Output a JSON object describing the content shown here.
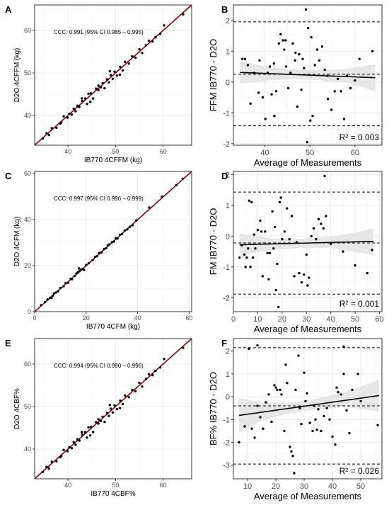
{
  "panels": [
    {
      "id": "A",
      "letter": "A",
      "kind": "scatter-identity",
      "xlabel": "IB770 4CFFM (kg)",
      "ylabel": "D2O 4CFFM (kg)",
      "annotation": "CCC: 0.991 (95% CI 0.985 – 0.995)",
      "xlim": [
        33,
        66
      ],
      "ylim": [
        33,
        66
      ],
      "xticks": [
        "40",
        "50",
        "60"
      ],
      "yticks": [
        "40",
        "50",
        "60"
      ],
      "xtick_values": [
        40,
        50,
        60
      ],
      "ytick_values": [
        40,
        50,
        60
      ],
      "points": {
        "x": [
          34.7,
          35.5,
          36.0,
          36.6,
          37.6,
          38.6,
          39.1,
          39.9,
          40.3,
          40.8,
          41.2,
          41.6,
          42.0,
          42.4,
          43.0,
          43.6,
          44.0,
          44.3,
          44.8,
          45.3,
          45.9,
          46.4,
          46.9,
          47.3,
          47.7,
          48.2,
          48.6,
          49.0,
          49.4,
          49.8,
          50.3,
          51.0,
          51.5,
          52.0,
          52.8,
          53.5,
          54.2,
          55.0,
          55.6,
          56.4,
          57.0,
          57.8,
          58.4,
          59.4,
          60.2,
          64.2,
          42.9,
          44.7,
          46.4,
          48.8,
          50.9,
          38.4
        ],
        "y": [
          34.6,
          35.8,
          35.4,
          37.0,
          37.1,
          38.4,
          39.8,
          39.5,
          40.4,
          40.2,
          41.6,
          41.0,
          42.3,
          42.0,
          43.4,
          44.0,
          42.7,
          45.1,
          45.2,
          44.0,
          46.3,
          46.0,
          46.6,
          47.6,
          46.4,
          48.5,
          47.8,
          49.5,
          48.6,
          50.3,
          49.4,
          51.4,
          50.6,
          52.6,
          52.2,
          53.9,
          53.6,
          55.6,
          54.7,
          56.5,
          57.6,
          57.4,
          58.4,
          59.2,
          61.2,
          63.8,
          44.0,
          43.2,
          47.0,
          50.4,
          49.6,
          38.1
        ]
      }
    },
    {
      "id": "B",
      "letter": "B",
      "kind": "bland-altman",
      "xlabel": "Average of Measurements",
      "ylabel": "FFM IB770 - D2O",
      "r2": "R² = 0.003",
      "xlim": [
        33,
        66
      ],
      "ylim": [
        -2.05,
        2.5
      ],
      "xticks": [
        "40",
        "50",
        "60"
      ],
      "yticks": [
        "-2",
        "-1",
        "0",
        "1",
        "2"
      ],
      "xtick_values": [
        40,
        50,
        60
      ],
      "ytick_values": [
        -2,
        -1,
        0,
        1,
        2
      ],
      "mean_bias": 0.25,
      "upper_loa": 1.95,
      "lower_loa": -1.42,
      "fit": {
        "x": [
          34.5,
          64.5
        ],
        "y": [
          0.31,
          0.14
        ]
      },
      "band": {
        "x": [
          34.5,
          41,
          47,
          52,
          58,
          64.5
        ],
        "upper": [
          0.68,
          0.48,
          0.4,
          0.38,
          0.42,
          0.58
        ],
        "lower": [
          -0.06,
          0.06,
          0.1,
          0.06,
          -0.02,
          -0.3
        ]
      },
      "points": {
        "x": [
          35.0,
          35.6,
          36.2,
          36.8,
          37.6,
          38.8,
          39.5,
          40.1,
          40.6,
          41.1,
          41.5,
          42.0,
          42.5,
          43.1,
          43.5,
          44.0,
          44.3,
          44.7,
          45.2,
          45.7,
          46.2,
          46.7,
          47.2,
          47.6,
          48.1,
          48.7,
          49.1,
          49.6,
          50.1,
          50.6,
          51.1,
          51.6,
          52.1,
          52.7,
          53.3,
          54.0,
          54.8,
          55.5,
          56.2,
          56.9,
          57.6,
          58.2,
          59.0,
          60.0,
          61.0,
          63.9,
          49.4,
          50.3,
          38.6,
          44.6,
          46.8,
          48.4,
          53.9,
          42.1
        ],
        "y": [
          0.75,
          0.75,
          0.55,
          -0.7,
          0.3,
          0.7,
          -0.5,
          -1.2,
          0.3,
          0.5,
          -0.4,
          0.6,
          -0.3,
          1.25,
          1.55,
          1.35,
          1.05,
          0.5,
          -0.2,
          0.3,
          1.25,
          0.7,
          -0.8,
          0.9,
          -0.25,
          0.45,
          2.35,
          1.75,
          -1.25,
          -1.1,
          0.55,
          1.05,
          0.7,
          1.15,
          0.4,
          -0.55,
          -0.9,
          -0.3,
          0.1,
          -0.3,
          -1.2,
          0.2,
          -0.2,
          0.05,
          0.75,
          1.0,
          -1.95,
          1.45,
          -0.35,
          1.35,
          0.95,
          0.75,
          0.2,
          -1.1
        ]
      }
    },
    {
      "id": "C",
      "letter": "C",
      "kind": "scatter-identity",
      "xlabel": "IB770 4CFM (kg)",
      "ylabel": "D2O 4CFM (kg)",
      "annotation": "CCC: 0.997 (95% CI 0.996 – 0.999)",
      "xlim": [
        0,
        61
      ],
      "ylim": [
        0,
        61
      ],
      "xticks": [
        "0",
        "20",
        "40",
        "60"
      ],
      "yticks": [
        "0",
        "20",
        "40",
        "60"
      ],
      "xtick_values": [
        0,
        20,
        40,
        60
      ],
      "ytick_values": [
        0,
        20,
        40,
        60
      ],
      "points": {
        "x": [
          2.5,
          4.0,
          5.0,
          6.0,
          7.0,
          7.5,
          8.2,
          9.0,
          10.0,
          11.2,
          12.0,
          13.0,
          14.0,
          14.5,
          15.5,
          16.2,
          16.8,
          17.4,
          18.0,
          18.6,
          19.2,
          20.0,
          21.0,
          22.5,
          23.5,
          24.2,
          25.0,
          26.0,
          27.0,
          27.8,
          28.4,
          29.0,
          30.0,
          30.8,
          31.5,
          32.2,
          33.2,
          34.0,
          35.0,
          36.0,
          37.0,
          38.0,
          39.5,
          44.5,
          49.5,
          55.0,
          57.5,
          6.6,
          17.2
        ],
        "y": [
          2.8,
          4.2,
          5.3,
          6.0,
          6.9,
          7.9,
          8.3,
          8.8,
          10.3,
          11.0,
          12.4,
          12.6,
          14.3,
          14.1,
          15.6,
          16.6,
          17.1,
          17.6,
          18.2,
          18.6,
          18.1,
          20.3,
          21.1,
          22.4,
          23.8,
          24.1,
          25.5,
          25.8,
          27.3,
          27.6,
          28.8,
          29.2,
          30.2,
          30.5,
          31.9,
          31.8,
          33.5,
          33.8,
          35.3,
          35.8,
          36.9,
          37.6,
          39.7,
          45.3,
          50.0,
          55.0,
          57.8,
          5.9,
          18.8
        ]
      }
    },
    {
      "id": "D",
      "letter": "D",
      "kind": "bland-altman",
      "xlabel": "Average of Measurements",
      "ylabel": "FM IB770 - D2O",
      "r2": "R² = 0.001",
      "xlim": [
        0,
        61
      ],
      "ylim": [
        -2.45,
        2.1
      ],
      "xticks": [
        "0",
        "10",
        "20",
        "30",
        "40",
        "50",
        "60"
      ],
      "yticks": [
        "-2",
        "-1",
        "0",
        "1",
        "2"
      ],
      "xtick_values": [
        0,
        10,
        20,
        30,
        40,
        50,
        60
      ],
      "ytick_values": [
        -2,
        -1,
        0,
        1,
        2
      ],
      "mean_bias": -0.22,
      "upper_loa": 1.43,
      "lower_loa": -1.88,
      "fit": {
        "x": [
          2.5,
          57.5
        ],
        "y": [
          -0.28,
          -0.17
        ]
      },
      "band": {
        "x": [
          2.5,
          15,
          28,
          40,
          50,
          57.5
        ],
        "upper": [
          0.08,
          -0.07,
          -0.08,
          -0.02,
          0.12,
          0.25
        ],
        "lower": [
          -0.64,
          -0.45,
          -0.38,
          -0.38,
          -0.52,
          -0.62
        ]
      },
      "points": {
        "x": [
          2.5,
          3.5,
          4.5,
          5.0,
          5.5,
          6.0,
          6.5,
          7.0,
          7.5,
          8.0,
          8.5,
          9.0,
          10.0,
          11.0,
          11.5,
          12.0,
          13.0,
          14.0,
          14.5,
          15.0,
          16.0,
          16.5,
          17.0,
          17.5,
          18.0,
          18.5,
          19.0,
          20.0,
          21.0,
          22.0,
          23.0,
          24.0,
          25.0,
          26.0,
          27.0,
          28.0,
          29.0,
          30.0,
          30.5,
          31.0,
          32.0,
          33.0,
          34.0,
          35.0,
          36.0,
          37.0,
          38.0,
          40.0,
          45.0,
          50.0,
          55.0,
          57.0,
          37.5,
          19.5
        ],
        "y": [
          -0.7,
          -0.3,
          -0.6,
          -1.0,
          -0.7,
          -0.4,
          1.15,
          -1.0,
          1.1,
          -0.7,
          0.05,
          -0.4,
          0.2,
          0.5,
          0.15,
          -1.3,
          0.15,
          -0.55,
          -1.4,
          -0.55,
          0.8,
          -0.4,
          0.3,
          -1.75,
          -0.9,
          -2.3,
          1.1,
          -0.1,
          0.15,
          0.9,
          -0.1,
          0.65,
          -1.3,
          -0.2,
          -1.2,
          -1.5,
          -1.25,
          -0.6,
          -1.6,
          -1.35,
          0.0,
          0.25,
          -0.1,
          0.55,
          0.4,
          0.25,
          0.65,
          -0.25,
          -0.5,
          -0.95,
          -1.2,
          -0.45,
          1.95,
          1.25
        ]
      }
    },
    {
      "id": "E",
      "letter": "E",
      "kind": "scatter-identity",
      "xlabel": "IB770 4CBF%",
      "ylabel": "D2O 4CBF%",
      "annotation": "CCC: 0.994 (95% CI 0.990 – 0.996)",
      "xlim": [
        33,
        66
      ],
      "ylim": [
        33,
        66
      ],
      "xticks": [
        "40",
        "50",
        "60"
      ],
      "yticks": [
        "40",
        "50",
        "60"
      ],
      "xtick_values": [
        40,
        50,
        60
      ],
      "ytick_values": [
        40,
        50,
        60
      ],
      "points": {
        "x": [
          34.7,
          35.5,
          36.0,
          36.6,
          37.6,
          38.6,
          39.1,
          39.9,
          40.3,
          40.8,
          41.2,
          41.6,
          42.0,
          42.4,
          43.0,
          43.6,
          44.0,
          44.3,
          44.8,
          45.3,
          45.9,
          46.4,
          46.9,
          47.3,
          47.7,
          48.2,
          48.6,
          49.0,
          49.4,
          49.8,
          50.3,
          51.0,
          51.5,
          52.0,
          52.8,
          53.5,
          54.2,
          55.0,
          55.6,
          56.4,
          57.0,
          57.8,
          58.4,
          59.4,
          60.2,
          64.2,
          42.9,
          44.7,
          46.4,
          48.8,
          50.9,
          38.4
        ],
        "y": [
          34.6,
          35.8,
          35.4,
          37.0,
          37.1,
          38.4,
          39.8,
          39.5,
          40.4,
          40.2,
          41.6,
          41.0,
          42.3,
          42.0,
          43.4,
          44.0,
          42.7,
          45.1,
          45.2,
          44.0,
          46.3,
          46.0,
          46.6,
          47.6,
          46.4,
          48.5,
          47.8,
          49.5,
          48.6,
          50.3,
          49.4,
          51.4,
          50.6,
          52.6,
          52.2,
          53.9,
          53.6,
          55.6,
          54.7,
          56.5,
          57.6,
          57.4,
          58.4,
          59.2,
          61.2,
          63.8,
          44.0,
          43.2,
          47.0,
          50.4,
          49.6,
          38.1
        ]
      }
    },
    {
      "id": "F",
      "letter": "F",
      "kind": "bland-altman",
      "xlabel": "Average of Measurements",
      "ylabel": "BF% IB770 - D2O",
      "r2": "R² = 0.026",
      "xlim": [
        5,
        57.5
      ],
      "ylim": [
        -3.6,
        2.55
      ],
      "xticks": [
        "10",
        "20",
        "30",
        "40",
        "50"
      ],
      "yticks": [
        "-3",
        "-2",
        "-1",
        "0",
        "1",
        "2"
      ],
      "xtick_values": [
        10,
        20,
        30,
        40,
        50
      ],
      "ytick_values": [
        -3,
        -2,
        -1,
        0,
        1,
        2
      ],
      "mean_bias": -0.4,
      "upper_loa": 2.15,
      "lower_loa": -2.95,
      "fit": {
        "x": [
          7,
          56.5
        ],
        "y": [
          -0.82,
          0.05
        ]
      },
      "band": {
        "x": [
          7,
          15,
          25,
          33,
          45,
          56.5
        ],
        "upper": [
          -0.05,
          -0.25,
          -0.25,
          -0.12,
          0.2,
          0.75
        ],
        "lower": [
          -1.6,
          -1.05,
          -0.72,
          -0.58,
          -0.45,
          -0.65
        ]
      },
      "points": {
        "x": [
          7.0,
          9.0,
          10.5,
          11.5,
          12.5,
          13.5,
          14.5,
          15.5,
          16.5,
          17.5,
          18.5,
          19.5,
          20.0,
          20.5,
          21.5,
          22.0,
          23.0,
          23.5,
          24.0,
          25.0,
          25.5,
          26.0,
          26.5,
          27.0,
          28.0,
          28.5,
          29.0,
          30.0,
          30.5,
          31.0,
          32.0,
          33.0,
          33.5,
          34.0,
          34.5,
          35.0,
          36.0,
          37.0,
          38.0,
          39.0,
          40.0,
          41.0,
          42.0,
          43.0,
          44.0,
          45.0,
          46.0,
          47.0,
          49.0,
          50.0,
          56.0,
          13.5,
          41.5,
          44.0
        ],
        "y": [
          -2.0,
          -1.3,
          2.1,
          -1.4,
          -1.8,
          2.25,
          -0.9,
          -1.4,
          -0.25,
          0.1,
          -1.1,
          0.5,
          0.4,
          0.3,
          0.3,
          0.1,
          -1.5,
          1.4,
          0.6,
          -2.2,
          -2.4,
          -2.6,
          -3.35,
          0.3,
          1.8,
          -0.5,
          -1.2,
          1.05,
          -0.2,
          0.15,
          -1.15,
          -1.5,
          -0.4,
          -1.0,
          -1.45,
          -0.55,
          -1.5,
          -0.85,
          -0.5,
          -1.0,
          -1.75,
          -2.1,
          0.2,
          0.1,
          1.0,
          -0.6,
          -1.6,
          0.3,
          1.0,
          -0.2,
          -1.25,
          -0.4,
          0.4,
          2.2
        ]
      }
    }
  ],
  "colors": {
    "identity_line": "#8b0000",
    "points": "#000000",
    "grid": "#ebebeb",
    "band": "#e3e3e3",
    "axis_text": "#4d4d4d"
  }
}
